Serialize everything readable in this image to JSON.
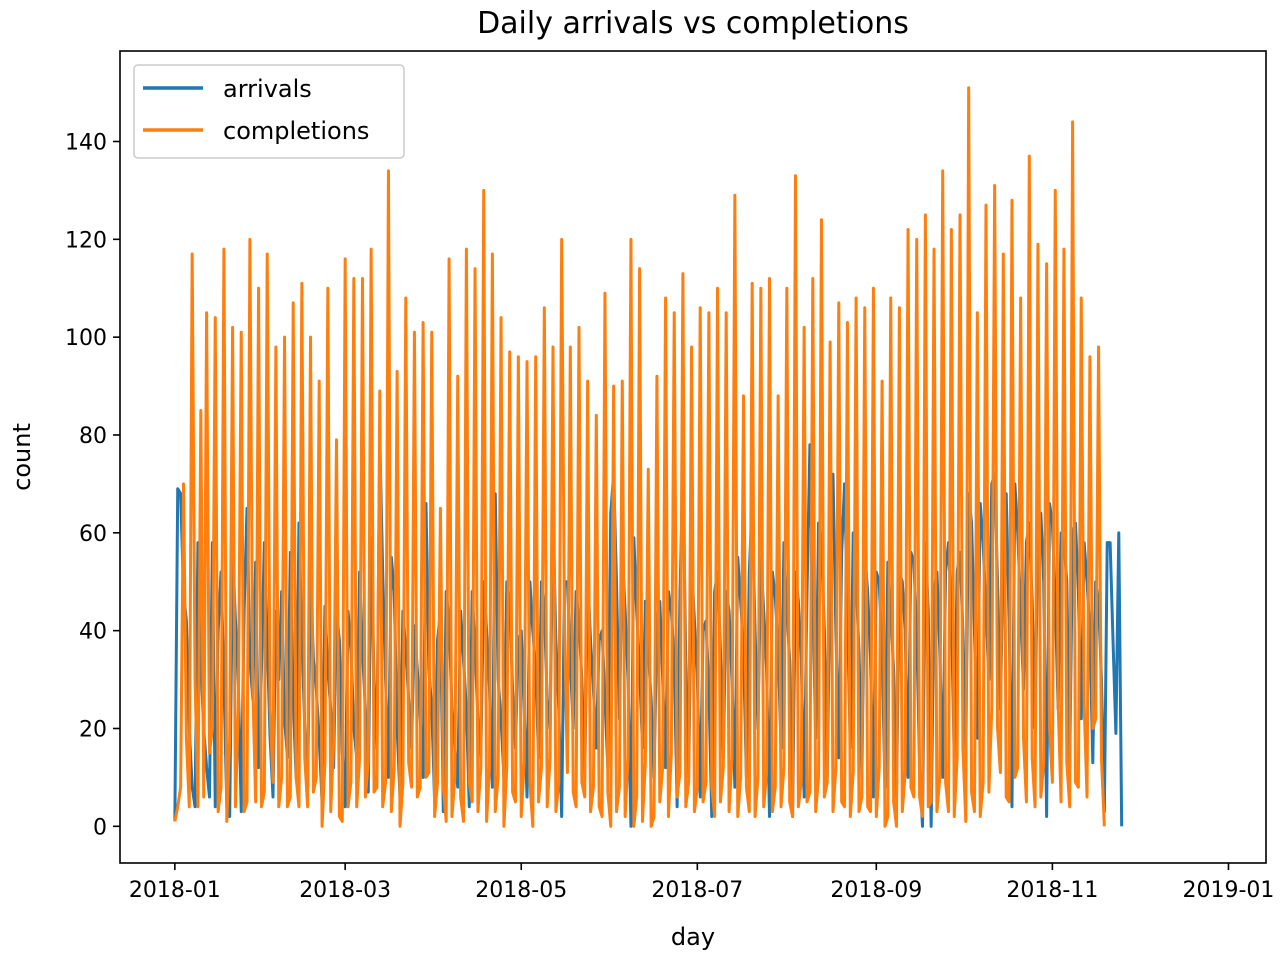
{
  "chart_data": {
    "type": "line",
    "title": "Daily arrivals vs completions",
    "xlabel": "day",
    "ylabel": "count",
    "x_range": [
      "2017-12-13",
      "2019-01-14"
    ],
    "ylim": [
      -7.5,
      158.5
    ],
    "grid": false,
    "legend": {
      "placement": "top-left"
    },
    "x_ticks": [
      "2018-01",
      "2018-03",
      "2018-05",
      "2018-07",
      "2018-09",
      "2018-11",
      "2019-01"
    ],
    "x_tick_dates": [
      "2018-01-01",
      "2018-03-01",
      "2018-05-01",
      "2018-07-01",
      "2018-09-01",
      "2018-11-01",
      "2019-01-01"
    ],
    "y_ticks": [
      0,
      20,
      40,
      60,
      80,
      100,
      120,
      140
    ],
    "x": {
      "start": "2018-01-01",
      "end": "2018-12-31",
      "frequency": "daily"
    },
    "series": [
      {
        "name": "arrivals",
        "color": "#1f77b4",
        "values": [
          1,
          69,
          68,
          48,
          42,
          20,
          8,
          4,
          58,
          33,
          20,
          12,
          6,
          58,
          4,
          40,
          52,
          30,
          4,
          2,
          56,
          42,
          29,
          3,
          44,
          65,
          34,
          26,
          54,
          12,
          32,
          58,
          38,
          18,
          6,
          44,
          30,
          48,
          22,
          14,
          56,
          26,
          10,
          62,
          39,
          20,
          8,
          52,
          34,
          28,
          18,
          5,
          45,
          32,
          24,
          12,
          44,
          38,
          15,
          4,
          44,
          36,
          20,
          14,
          52,
          36,
          24,
          7,
          59,
          30,
          16,
          79,
          52,
          30,
          10,
          55,
          48,
          20,
          6,
          44,
          36,
          26,
          16,
          41,
          32,
          22,
          10,
          66,
          32,
          24,
          5,
          38,
          44,
          3,
          48,
          42,
          24,
          16,
          8,
          44,
          34,
          24,
          4,
          48,
          36,
          22,
          14,
          50,
          40,
          28,
          8,
          68,
          30,
          22,
          10,
          50,
          46,
          28,
          16,
          38,
          40,
          24,
          6,
          50,
          40,
          32,
          14,
          50,
          44,
          26,
          20,
          64,
          38,
          24,
          2,
          50,
          50,
          34,
          20,
          48,
          42,
          30,
          10,
          52,
          38,
          28,
          16,
          38,
          40,
          26,
          12,
          64,
          72,
          50,
          22,
          56,
          44,
          30,
          0,
          59,
          44,
          32,
          16,
          46,
          36,
          26,
          10,
          42,
          46,
          30,
          12,
          48,
          44,
          34,
          4,
          48,
          73,
          34,
          10,
          54,
          42,
          30,
          6,
          40,
          42,
          28,
          2,
          48,
          52,
          36,
          14,
          48,
          44,
          30,
          8,
          55,
          46,
          36,
          10,
          52,
          66,
          40,
          20,
          55,
          44,
          32,
          2,
          52,
          47,
          36,
          16,
          58,
          44,
          34,
          2,
          52,
          46,
          34,
          6,
          48,
          78,
          46,
          18,
          62,
          58,
          40,
          10,
          52,
          72,
          40,
          14,
          56,
          70,
          44,
          16,
          60,
          50,
          36,
          10,
          56,
          48,
          34,
          6,
          52,
          50,
          36,
          8,
          54,
          44,
          32,
          6,
          52,
          50,
          40,
          10,
          56,
          54,
          40,
          12,
          0,
          58,
          44,
          0,
          48,
          52,
          36,
          10,
          52,
          58,
          44,
          14,
          52,
          56,
          40,
          16,
          68,
          62,
          40,
          18,
          66,
          58,
          44,
          30,
          70,
          72,
          50,
          24,
          56,
          68,
          42,
          4,
          70,
          60,
          44,
          28,
          58,
          62,
          46,
          20,
          62,
          64,
          50,
          2,
          66,
          62,
          46,
          24,
          60,
          58,
          50,
          12,
          60,
          62,
          48,
          22,
          58,
          50,
          40,
          13,
          50,
          46,
          30,
          3,
          58,
          58,
          38,
          19,
          60,
          0
        ]
      },
      {
        "name": "completions",
        "color": "#ff7f0e",
        "values": [
          1,
          4,
          8,
          70,
          18,
          4,
          117,
          30,
          4,
          85,
          6,
          105,
          15,
          20,
          104,
          3,
          8,
          118,
          1,
          18,
          102,
          4,
          24,
          101,
          3,
          5,
          120,
          28,
          5,
          110,
          4,
          7,
          117,
          24,
          9,
          98,
          4,
          10,
          100,
          4,
          6,
          107,
          10,
          4,
          111,
          14,
          4,
          100,
          7,
          10,
          91,
          0,
          13,
          110,
          3,
          17,
          79,
          2,
          1,
          116,
          4,
          9,
          112,
          4,
          14,
          112,
          6,
          13,
          118,
          7,
          8,
          89,
          4,
          9,
          134,
          3,
          12,
          93,
          0,
          9,
          108,
          13,
          8,
          101,
          6,
          8,
          103,
          10,
          11,
          101,
          2,
          9,
          65,
          8,
          1,
          116,
          2,
          10,
          92,
          6,
          1,
          118,
          9,
          5,
          114,
          3,
          12,
          130,
          1,
          12,
          117,
          3,
          10,
          104,
          0,
          12,
          97,
          7,
          5,
          96,
          2,
          13,
          95,
          9,
          0,
          96,
          5,
          12,
          106,
          4,
          14,
          98,
          3,
          9,
          120,
          40,
          11,
          98,
          7,
          4,
          102,
          9,
          6,
          91,
          3,
          8,
          84,
          4,
          2,
          109,
          7,
          0,
          90,
          3,
          8,
          91,
          2,
          14,
          120,
          0,
          6,
          114,
          1,
          13,
          73,
          0,
          2,
          92,
          5,
          12,
          108,
          2,
          15,
          105,
          6,
          11,
          113,
          4,
          9,
          98,
          3,
          8,
          106,
          5,
          9,
          105,
          8,
          2,
          110,
          5,
          12,
          105,
          3,
          14,
          129,
          2,
          10,
          88,
          8,
          3,
          111,
          2,
          10,
          110,
          4,
          11,
          112,
          3,
          8,
          88,
          4,
          12,
          110,
          5,
          2,
          133,
          4,
          9,
          102,
          5,
          7,
          112,
          3,
          10,
          124,
          6,
          9,
          99,
          3,
          12,
          107,
          5,
          4,
          103,
          2,
          11,
          108,
          3,
          6,
          106,
          4,
          3,
          110,
          2,
          12,
          91,
          0,
          2,
          108,
          5,
          0,
          106,
          3,
          11,
          122,
          8,
          6,
          120,
          6,
          2,
          125,
          4,
          5,
          118,
          3,
          10,
          134,
          9,
          3,
          122,
          2,
          14,
          125,
          16,
          1,
          151,
          7,
          3,
          105,
          2,
          9,
          127,
          7,
          24,
          131,
          20,
          11,
          117,
          6,
          5,
          128,
          10,
          12,
          108,
          18,
          5,
          137,
          14,
          4,
          119,
          6,
          13,
          115,
          20,
          9,
          130,
          25,
          5,
          118,
          13,
          4,
          144,
          9,
          8,
          108,
          25,
          6,
          96,
          20,
          22,
          98,
          14,
          0
        ]
      }
    ]
  }
}
